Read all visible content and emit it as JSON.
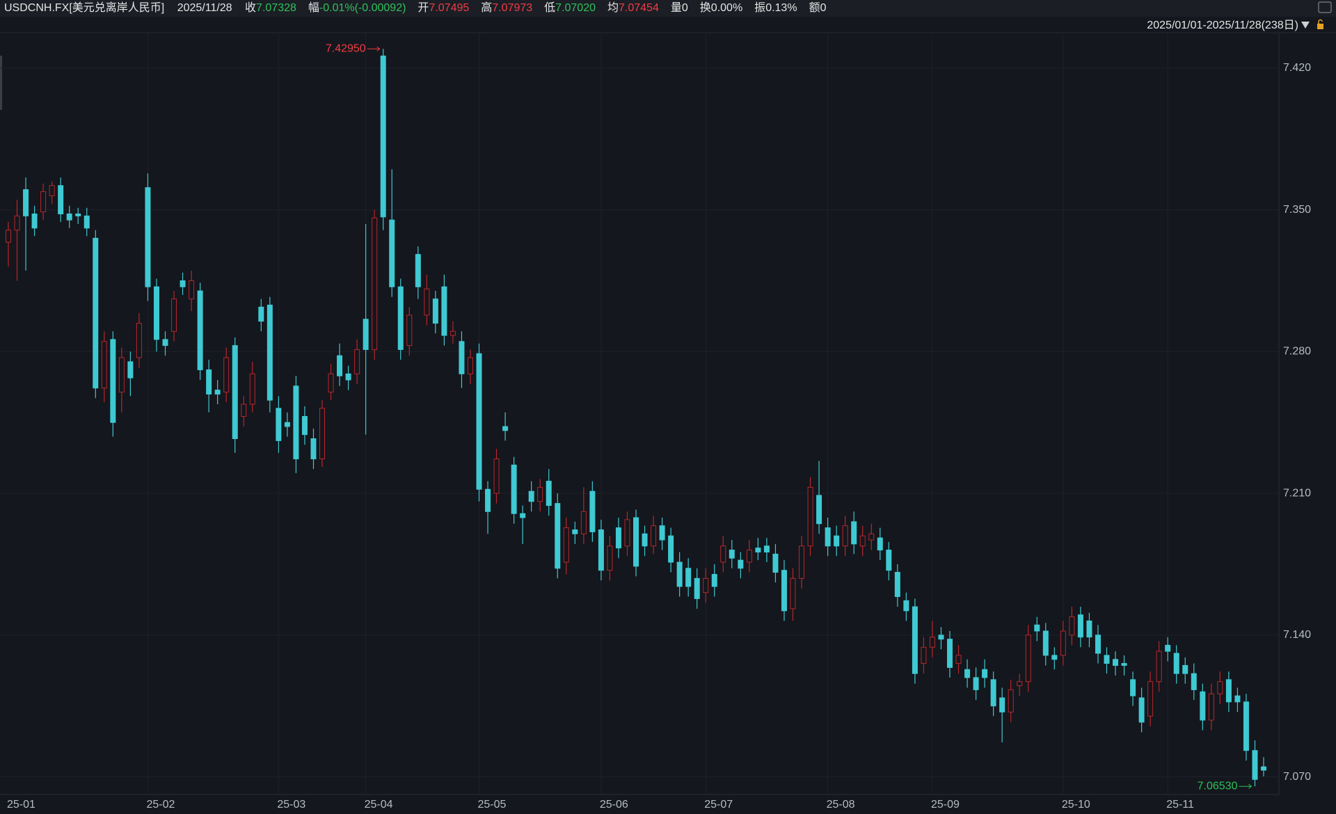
{
  "header": {
    "symbol": "USDCNH.FX[美元兑离岸人民币]",
    "date": "2025/11/28",
    "fields": [
      {
        "label": "收",
        "value": "7.07328",
        "color": "#2fc25b"
      },
      {
        "label": "幅",
        "value": "-0.01%(-0.00092)",
        "color": "#2fc25b"
      },
      {
        "label": "开",
        "value": "7.07495",
        "color": "#f23c44"
      },
      {
        "label": "高",
        "value": "7.07973",
        "color": "#f23c44"
      },
      {
        "label": "低",
        "value": "7.07020",
        "color": "#2fc25b"
      },
      {
        "label": "均",
        "value": "7.07454",
        "color": "#f23c44"
      },
      {
        "label": "量",
        "value": "0",
        "color": "#e6e6e6"
      },
      {
        "label": "换",
        "value": "0.00%",
        "color": "#e6e6e6"
      },
      {
        "label": "振",
        "value": "0.13%",
        "color": "#e6e6e6"
      },
      {
        "label": "额",
        "value": "0",
        "color": "#e6e6e6"
      }
    ],
    "range_label": "2025/01/01-2025/11/28(238日)"
  },
  "chart_data": {
    "type": "candlestick",
    "up_color": "#b8262c",
    "down_color": "#3fc9d3",
    "grid": true,
    "ylim": [
      7.0616,
      7.4368
    ],
    "yticks": [
      {
        "value": 7.07,
        "label": "7.070"
      },
      {
        "value": 7.14,
        "label": "7.140"
      },
      {
        "value": 7.21,
        "label": "7.210"
      },
      {
        "value": 7.28,
        "label": "7.280"
      },
      {
        "value": 7.35,
        "label": "7.350"
      },
      {
        "value": 7.42,
        "label": "7.420"
      }
    ],
    "categories": [
      "25-01",
      null,
      null,
      null,
      null,
      null,
      null,
      null,
      null,
      null,
      null,
      null,
      null,
      null,
      null,
      null,
      "25-02",
      null,
      null,
      null,
      null,
      null,
      null,
      null,
      null,
      null,
      null,
      null,
      null,
      null,
      null,
      "25-03",
      null,
      null,
      null,
      null,
      null,
      null,
      null,
      null,
      null,
      "25-04",
      null,
      null,
      null,
      null,
      null,
      null,
      null,
      null,
      null,
      null,
      null,
      null,
      "25-05",
      null,
      null,
      null,
      null,
      null,
      null,
      null,
      null,
      null,
      null,
      null,
      null,
      null,
      "25-06",
      null,
      null,
      null,
      null,
      null,
      null,
      null,
      null,
      null,
      null,
      null,
      "25-07",
      null,
      null,
      null,
      null,
      null,
      null,
      null,
      null,
      null,
      null,
      null,
      null,
      null,
      "25-08",
      null,
      null,
      null,
      null,
      null,
      null,
      null,
      null,
      null,
      null,
      null,
      "25-09",
      null,
      null,
      null,
      null,
      null,
      null,
      null,
      null,
      null,
      null,
      null,
      null,
      null,
      null,
      "25-10",
      null,
      null,
      null,
      null,
      null,
      null,
      null,
      null,
      null,
      null,
      null,
      "25-11",
      null,
      null,
      null,
      null,
      null,
      null,
      null,
      null,
      null,
      null,
      null
    ],
    "open": [
      7.334,
      7.34,
      7.36,
      7.348,
      7.349,
      7.357,
      7.362,
      7.348,
      7.348,
      7.347,
      7.336,
      7.262,
      7.286,
      7.26,
      7.275,
      7.277,
      7.361,
      7.312,
      7.286,
      7.29,
      7.315,
      7.306,
      7.31,
      7.271,
      7.261,
      7.26,
      7.283,
      7.248,
      7.254,
      7.302,
      7.303,
      7.252,
      7.245,
      7.263,
      7.248,
      7.237,
      7.227,
      7.26,
      7.278,
      7.269,
      7.269,
      7.296,
      7.281,
      7.426,
      7.345,
      7.312,
      7.283,
      7.328,
      7.298,
      7.306,
      7.312,
      7.288,
      7.285,
      7.269,
      7.279,
      7.212,
      7.21,
      7.243,
      7.224,
      7.2,
      7.211,
      7.206,
      7.216,
      7.205,
      7.176,
      7.192,
      7.19,
      7.211,
      7.192,
      7.172,
      7.193,
      7.184,
      7.198,
      7.19,
      7.184,
      7.194,
      7.189,
      7.176,
      7.173,
      7.168,
      7.161,
      7.17,
      7.176,
      7.182,
      7.177,
      7.176,
      7.183,
      7.184,
      7.18,
      7.172,
      7.153,
      7.168,
      7.184,
      7.209,
      7.193,
      7.189,
      7.184,
      7.196,
      7.184,
      7.187,
      7.188,
      7.182,
      7.171,
      7.157,
      7.154,
      7.126,
      7.134,
      7.14,
      7.138,
      7.126,
      7.123,
      7.119,
      7.123,
      7.118,
      7.109,
      7.102,
      7.115,
      7.117,
      7.145,
      7.142,
      7.13,
      7.13,
      7.14,
      7.15,
      7.147,
      7.14,
      7.13,
      7.128,
      7.126,
      7.118,
      7.109,
      7.1,
      7.117,
      7.135,
      7.131,
      7.125,
      7.121,
      7.112,
      7.098,
      7.111,
      7.118,
      7.11,
      7.107,
      7.083,
      7.07495
    ],
    "close": [
      7.34,
      7.347,
      7.347,
      7.341,
      7.359,
      7.362,
      7.348,
      7.345,
      7.347,
      7.341,
      7.262,
      7.285,
      7.245,
      7.277,
      7.267,
      7.294,
      7.312,
      7.286,
      7.283,
      7.306,
      7.312,
      7.315,
      7.271,
      7.259,
      7.259,
      7.277,
      7.237,
      7.254,
      7.269,
      7.295,
      7.256,
      7.236,
      7.243,
      7.227,
      7.239,
      7.227,
      7.252,
      7.269,
      7.268,
      7.266,
      7.281,
      7.281,
      7.346,
      7.3465,
      7.312,
      7.281,
      7.298,
      7.312,
      7.311,
      7.294,
      7.288,
      7.29,
      7.269,
      7.277,
      7.212,
      7.201,
      7.227,
      7.241,
      7.2,
      7.198,
      7.206,
      7.213,
      7.204,
      7.173,
      7.193,
      7.19,
      7.201,
      7.191,
      7.172,
      7.184,
      7.183,
      7.197,
      7.174,
      7.184,
      7.194,
      7.187,
      7.176,
      7.164,
      7.164,
      7.158,
      7.168,
      7.164,
      7.184,
      7.178,
      7.173,
      7.182,
      7.181,
      7.181,
      7.171,
      7.152,
      7.168,
      7.184,
      7.213,
      7.195,
      7.184,
      7.184,
      7.194,
      7.185,
      7.189,
      7.19,
      7.182,
      7.172,
      7.159,
      7.152,
      7.121,
      7.134,
      7.139,
      7.138,
      7.124,
      7.13,
      7.119,
      7.113,
      7.119,
      7.105,
      7.102,
      7.113,
      7.117,
      7.14,
      7.142,
      7.13,
      7.128,
      7.142,
      7.149,
      7.139,
      7.139,
      7.131,
      7.126,
      7.125,
      7.125,
      7.11,
      7.097,
      7.117,
      7.132,
      7.132,
      7.121,
      7.121,
      7.113,
      7.098,
      7.111,
      7.117,
      7.107,
      7.107,
      7.083,
      7.0687,
      7.07328
    ],
    "high": [
      7.344,
      7.355,
      7.366,
      7.352,
      7.363,
      7.364,
      7.366,
      7.352,
      7.351,
      7.351,
      7.34,
      7.29,
      7.29,
      7.282,
      7.28,
      7.299,
      7.368,
      7.316,
      7.29,
      7.31,
      7.319,
      7.32,
      7.314,
      7.276,
      7.266,
      7.282,
      7.287,
      7.258,
      7.275,
      7.306,
      7.307,
      7.258,
      7.25,
      7.268,
      7.253,
      7.242,
      7.256,
      7.274,
      7.284,
      7.273,
      7.286,
      7.343,
      7.35,
      7.4295,
      7.37,
      7.316,
      7.302,
      7.332,
      7.318,
      7.31,
      7.318,
      7.295,
      7.29,
      7.281,
      7.284,
      7.216,
      7.232,
      7.25,
      7.228,
      7.204,
      7.216,
      7.217,
      7.222,
      7.21,
      7.198,
      7.196,
      7.213,
      7.216,
      7.197,
      7.189,
      7.198,
      7.201,
      7.202,
      7.194,
      7.199,
      7.198,
      7.193,
      7.181,
      7.178,
      7.173,
      7.173,
      7.175,
      7.189,
      7.187,
      7.181,
      7.187,
      7.188,
      7.188,
      7.185,
      7.177,
      7.173,
      7.189,
      7.218,
      7.226,
      7.198,
      7.194,
      7.199,
      7.201,
      7.194,
      7.195,
      7.193,
      7.186,
      7.175,
      7.161,
      7.158,
      7.139,
      7.147,
      7.144,
      7.142,
      7.135,
      7.128,
      7.124,
      7.128,
      7.122,
      7.114,
      7.118,
      7.121,
      7.145,
      7.149,
      7.146,
      7.134,
      7.147,
      7.154,
      7.154,
      7.151,
      7.145,
      7.134,
      7.132,
      7.13,
      7.122,
      7.114,
      7.122,
      7.137,
      7.139,
      7.135,
      7.129,
      7.126,
      7.116,
      7.116,
      7.122,
      7.122,
      7.114,
      7.111,
      7.088,
      7.07973
    ],
    "low": [
      7.322,
      7.315,
      7.32,
      7.337,
      7.345,
      7.353,
      7.344,
      7.341,
      7.343,
      7.337,
      7.257,
      7.255,
      7.238,
      7.25,
      7.258,
      7.272,
      7.305,
      7.28,
      7.278,
      7.285,
      7.308,
      7.3,
      7.266,
      7.25,
      7.254,
      7.255,
      7.23,
      7.243,
      7.25,
      7.29,
      7.25,
      7.23,
      7.238,
      7.22,
      7.234,
      7.222,
      7.223,
      7.256,
      7.263,
      7.261,
      7.264,
      7.239,
      7.276,
      7.34,
      7.307,
      7.276,
      7.278,
      7.306,
      7.293,
      7.289,
      7.283,
      7.284,
      7.262,
      7.264,
      7.206,
      7.19,
      7.205,
      7.236,
      7.195,
      7.185,
      7.201,
      7.201,
      7.199,
      7.168,
      7.17,
      7.185,
      7.185,
      7.186,
      7.167,
      7.167,
      7.178,
      7.179,
      7.169,
      7.179,
      7.18,
      7.182,
      7.171,
      7.159,
      7.159,
      7.153,
      7.156,
      7.159,
      7.171,
      7.173,
      7.168,
      7.171,
      7.177,
      7.176,
      7.166,
      7.147,
      7.147,
      7.163,
      7.179,
      7.19,
      7.179,
      7.179,
      7.179,
      7.18,
      7.179,
      7.182,
      7.177,
      7.167,
      7.154,
      7.147,
      7.116,
      7.121,
      7.129,
      7.133,
      7.119,
      7.121,
      7.114,
      7.108,
      7.114,
      7.1,
      7.087,
      7.097,
      7.11,
      7.112,
      7.137,
      7.125,
      7.123,
      7.125,
      7.135,
      7.134,
      7.134,
      7.126,
      7.121,
      7.12,
      7.12,
      7.105,
      7.092,
      7.095,
      7.112,
      7.127,
      7.116,
      7.116,
      7.108,
      7.093,
      7.093,
      7.106,
      7.102,
      7.102,
      7.078,
      7.0653,
      7.0702
    ],
    "max_marker": {
      "value": 7.4295,
      "label": "7.42950",
      "color": "#f23c44"
    },
    "min_marker": {
      "value": 7.0653,
      "label": "7.06530",
      "color": "#2fc25b"
    }
  }
}
